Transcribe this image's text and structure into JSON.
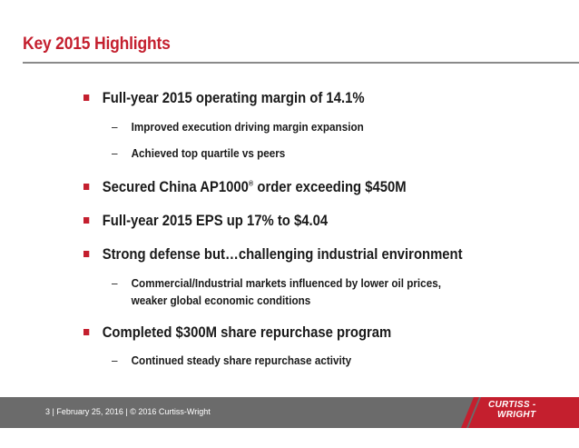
{
  "slide": {
    "title": "Key 2015 Highlights",
    "bullets": [
      {
        "text": "Full-year 2015 operating margin of 14.1%"
      },
      {
        "text": "Secured China AP1000",
        "sup": "®",
        "text_after": " order exceeding $450M"
      },
      {
        "text": "Full-year 2015 EPS up 17% to $4.04"
      },
      {
        "text": "Strong defense but…challenging industrial environment"
      },
      {
        "text": "Completed $300M share repurchase program"
      }
    ],
    "subs": [
      {
        "dash": "–",
        "text": "Improved execution driving margin expansion"
      },
      {
        "dash": "–",
        "text": "Achieved top quartile vs peers"
      },
      {
        "dash": "–",
        "text": "Commercial/Industrial markets influenced by lower oil prices,",
        "text2": "weaker global economic conditions"
      },
      {
        "dash": "–",
        "text": "Continued steady share repurchase activity"
      }
    ]
  },
  "footer": {
    "text": "3  | February 25, 2016  |  © 2016 Curtiss-Wright",
    "logo_line1": "CURTISS -",
    "logo_line2": "WRIGHT"
  },
  "colors": {
    "accent": "#c41f2e",
    "footer_band": "#6b6b6b",
    "text": "#1a1a1a"
  }
}
